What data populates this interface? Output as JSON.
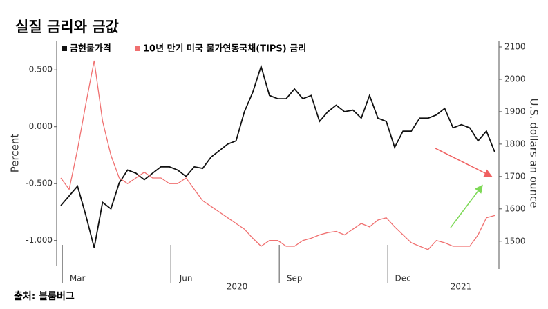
{
  "chart_data": {
    "type": "line",
    "title": "실질 금리와 금값",
    "source": "출처: 블룸버그",
    "ylabel": "Percent",
    "y2label": "U.S. dollars an ounce",
    "categories": [
      null,
      null,
      "Mar",
      null,
      null,
      null,
      null,
      null,
      null,
      null,
      null,
      null,
      null,
      null,
      null,
      "Jun",
      null,
      null,
      null,
      null,
      null,
      null,
      null,
      null,
      null,
      null,
      null,
      null,
      "Sep",
      null,
      null,
      null,
      null,
      null,
      null,
      null,
      null,
      null,
      null,
      null,
      null,
      "Dec",
      null,
      null,
      null,
      null,
      null,
      null,
      null,
      null,
      null,
      null,
      null
    ],
    "year_labels": [
      "2020",
      "2021"
    ],
    "series": [
      {
        "name": "금현물가격",
        "color": "#111111",
        "axis": "y2",
        "values": [
          1610,
          1640,
          1670,
          1580,
          1480,
          1620,
          1600,
          1680,
          1720,
          1710,
          1690,
          1710,
          1730,
          1730,
          1720,
          1700,
          1730,
          1725,
          1760,
          1780,
          1800,
          1810,
          1900,
          1960,
          2040,
          1950,
          1940,
          1940,
          1970,
          1940,
          1950,
          1870,
          1900,
          1920,
          1900,
          1905,
          1880,
          1950,
          1880,
          1870,
          1790,
          1840,
          1840,
          1880,
          1880,
          1890,
          1910,
          1850,
          1860,
          1850,
          1810,
          1840,
          1775
        ]
      },
      {
        "name": "10년 만기 미국 물가연동국채(TIPS) 금리",
        "color": "#f07070",
        "values": [
          -0.45,
          -0.55,
          -0.2,
          0.2,
          0.58,
          0.05,
          -0.25,
          -0.45,
          -0.5,
          -0.45,
          -0.4,
          -0.45,
          -0.45,
          -0.5,
          -0.5,
          -0.45,
          -0.55,
          -0.65,
          -0.7,
          -0.75,
          -0.8,
          -0.85,
          -0.9,
          -0.98,
          -1.05,
          -1.0,
          -1.0,
          -1.05,
          -1.05,
          -1.0,
          -0.98,
          -0.95,
          -0.93,
          -0.92,
          -0.95,
          -0.9,
          -0.85,
          -0.88,
          -0.82,
          -0.8,
          -0.88,
          -0.95,
          -1.02,
          -1.05,
          -1.08,
          -1.0,
          -1.02,
          -1.05,
          -1.05,
          -1.05,
          -0.95,
          -0.8,
          -0.78
        ]
      }
    ],
    "ylim": [
      -1.22,
      0.75
    ],
    "yticks": [
      {
        "value": 0.5,
        "label": "0.500"
      },
      {
        "value": 0,
        "label": "0.000"
      },
      {
        "value": -0.5,
        "label": "-0.500"
      },
      {
        "value": -1,
        "label": "-1.000"
      }
    ],
    "y2lim": [
      1425,
      2117
    ],
    "y2ticks": [
      1500,
      1600,
      1700,
      1800,
      1900,
      2000,
      2100
    ],
    "grid": false
  }
}
